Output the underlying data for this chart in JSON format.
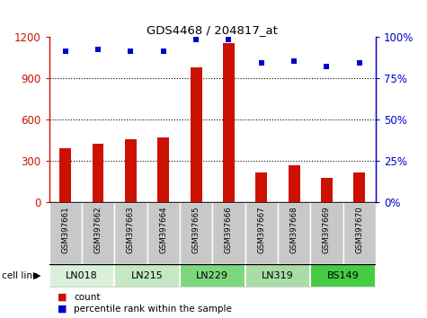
{
  "title": "GDS4468 / 204817_at",
  "samples": [
    "GSM397661",
    "GSM397662",
    "GSM397663",
    "GSM397664",
    "GSM397665",
    "GSM397666",
    "GSM397667",
    "GSM397668",
    "GSM397669",
    "GSM397670"
  ],
  "counts": [
    390,
    420,
    455,
    470,
    975,
    1155,
    215,
    265,
    175,
    215
  ],
  "percentiles": [
    91,
    92,
    91,
    91,
    98,
    98,
    84,
    85,
    82,
    84
  ],
  "cell_lines": [
    {
      "name": "LN018",
      "start": 0,
      "end": 2,
      "color": "#d9f0d9"
    },
    {
      "name": "LN215",
      "start": 2,
      "end": 4,
      "color": "#c4e8c4"
    },
    {
      "name": "LN229",
      "start": 4,
      "end": 6,
      "color": "#7dd87d"
    },
    {
      "name": "LN319",
      "start": 6,
      "end": 8,
      "color": "#a8dda8"
    },
    {
      "name": "BS149",
      "start": 8,
      "end": 10,
      "color": "#44cc44"
    }
  ],
  "bar_color": "#cc1100",
  "dot_color": "#0000cc",
  "left_ylim": [
    0,
    1200
  ],
  "right_ylim": [
    0,
    100
  ],
  "left_yticks": [
    0,
    300,
    600,
    900,
    1200
  ],
  "right_yticks": [
    0,
    25,
    50,
    75,
    100
  ],
  "left_yticklabels": [
    "0",
    "300",
    "600",
    "900",
    "1200"
  ],
  "right_yticklabels": [
    "0%",
    "25%",
    "50%",
    "75%",
    "100%"
  ],
  "grid_values": [
    300,
    600,
    900
  ],
  "tick_area_bg": "#c8c8c8",
  "legend_count_color": "#cc1100",
  "legend_pct_color": "#0000cc"
}
